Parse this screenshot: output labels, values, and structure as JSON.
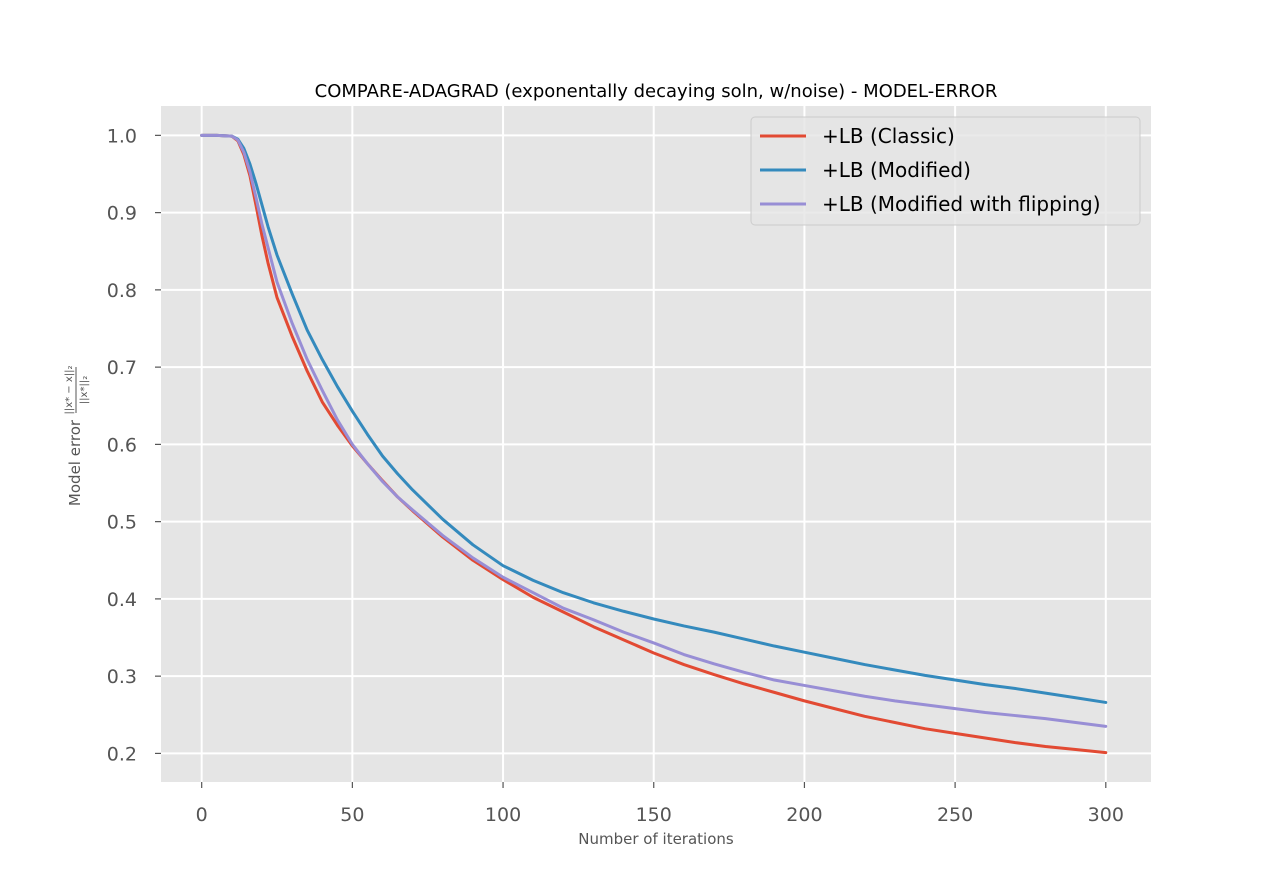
{
  "chart_data": {
    "type": "line",
    "title": "COMPARE-ADAGRAD (exponentally decaying soln, w/noise) - MODEL-ERROR",
    "xlabel": "Number of iterations",
    "ylabel_prefix": "Model error",
    "ylabel_num": "||x* − x||₂",
    "ylabel_den": "||x*||₂",
    "xlim": [
      -13.5,
      315
    ],
    "ylim": [
      0.163,
      1.038
    ],
    "xticks": [
      0,
      50,
      100,
      150,
      200,
      250,
      300
    ],
    "yticks": [
      0.2,
      0.3,
      0.4,
      0.5,
      0.6,
      0.7,
      0.8,
      0.9,
      1.0
    ],
    "xtick_labels": [
      "0",
      "50",
      "100",
      "150",
      "200",
      "250",
      "300"
    ],
    "ytick_labels": [
      "0.2",
      "0.3",
      "0.4",
      "0.5",
      "0.6",
      "0.7",
      "0.8",
      "0.9",
      "1.0"
    ],
    "grid": true,
    "legend_position": "top-right",
    "series": [
      {
        "name": "+LB (Classic)",
        "color": "#E24A33",
        "x": [
          0,
          5,
          10,
          12,
          14,
          16,
          18,
          20,
          22,
          25,
          30,
          35,
          40,
          45,
          50,
          55,
          60,
          65,
          70,
          80,
          90,
          100,
          110,
          120,
          130,
          140,
          150,
          160,
          170,
          180,
          190,
          200,
          210,
          220,
          230,
          240,
          250,
          260,
          270,
          280,
          290,
          300
        ],
        "y": [
          1.0,
          1.0,
          0.999,
          0.993,
          0.975,
          0.948,
          0.91,
          0.87,
          0.835,
          0.79,
          0.74,
          0.695,
          0.655,
          0.625,
          0.598,
          0.575,
          0.553,
          0.532,
          0.514,
          0.48,
          0.45,
          0.425,
          0.402,
          0.383,
          0.364,
          0.347,
          0.33,
          0.315,
          0.302,
          0.29,
          0.279,
          0.268,
          0.258,
          0.248,
          0.24,
          0.232,
          0.226,
          0.22,
          0.214,
          0.209,
          0.205,
          0.201
        ]
      },
      {
        "name": "+LB (Modified)",
        "color": "#348ABD",
        "x": [
          0,
          5,
          10,
          12,
          14,
          16,
          18,
          20,
          22,
          25,
          30,
          35,
          40,
          45,
          50,
          55,
          60,
          65,
          70,
          80,
          90,
          100,
          110,
          120,
          130,
          140,
          150,
          160,
          170,
          180,
          190,
          200,
          210,
          220,
          230,
          240,
          250,
          260,
          270,
          280,
          290,
          300
        ],
        "y": [
          1.0,
          1.0,
          0.999,
          0.995,
          0.983,
          0.963,
          0.938,
          0.91,
          0.882,
          0.845,
          0.795,
          0.748,
          0.71,
          0.675,
          0.643,
          0.613,
          0.585,
          0.562,
          0.541,
          0.503,
          0.47,
          0.443,
          0.424,
          0.408,
          0.395,
          0.384,
          0.374,
          0.365,
          0.357,
          0.348,
          0.339,
          0.331,
          0.323,
          0.315,
          0.308,
          0.301,
          0.295,
          0.289,
          0.284,
          0.278,
          0.272,
          0.266
        ]
      },
      {
        "name": "+LB (Modified with flipping)",
        "color": "#988ED5",
        "x": [
          0,
          5,
          10,
          12,
          14,
          16,
          18,
          20,
          22,
          25,
          30,
          35,
          40,
          45,
          50,
          55,
          60,
          65,
          70,
          80,
          90,
          100,
          110,
          120,
          130,
          140,
          150,
          160,
          170,
          180,
          190,
          200,
          210,
          220,
          230,
          240,
          250,
          260,
          270,
          280,
          290,
          300
        ],
        "y": [
          1.0,
          1.0,
          0.999,
          0.994,
          0.978,
          0.953,
          0.92,
          0.885,
          0.855,
          0.81,
          0.757,
          0.71,
          0.67,
          0.632,
          0.6,
          0.575,
          0.552,
          0.532,
          0.515,
          0.482,
          0.453,
          0.428,
          0.408,
          0.388,
          0.373,
          0.357,
          0.343,
          0.328,
          0.316,
          0.305,
          0.295,
          0.288,
          0.281,
          0.274,
          0.268,
          0.263,
          0.258,
          0.253,
          0.249,
          0.245,
          0.24,
          0.235
        ]
      }
    ]
  }
}
